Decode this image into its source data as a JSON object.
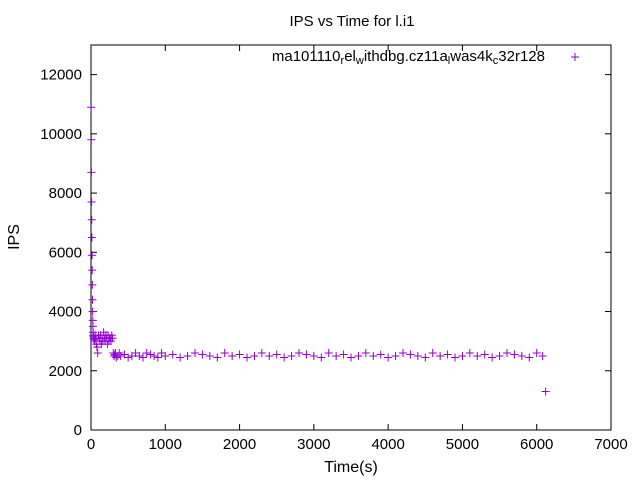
{
  "chart_data": {
    "type": "scatter",
    "title": "IPS vs Time for l.i1",
    "xlabel": "Time(s)",
    "ylabel": "IPS",
    "xlim": [
      0,
      7000
    ],
    "ylim": [
      0,
      13000
    ],
    "xticks": [
      0,
      1000,
      2000,
      3000,
      4000,
      5000,
      6000,
      7000
    ],
    "yticks": [
      0,
      2000,
      4000,
      6000,
      8000,
      10000,
      12000
    ],
    "xtick_labels": [
      "0",
      "1000",
      "2000",
      "3000",
      "4000",
      "5000",
      "6000",
      "7000"
    ],
    "ytick_labels": [
      "0",
      "2000",
      "4000",
      "6000",
      "8000",
      "10000",
      "12000"
    ],
    "grid": false,
    "legend_position": "top-right",
    "marker": "plus",
    "color": "#9400d3",
    "series": [
      {
        "name": "ma101110_rel_withdbg.cz11a_lwas4k_c32r128",
        "x": [
          2,
          4,
          6,
          8,
          10,
          12,
          14,
          16,
          18,
          20,
          22,
          24,
          26,
          28,
          30,
          34,
          38,
          42,
          48,
          55,
          62,
          70,
          80,
          90,
          100,
          110,
          120,
          130,
          140,
          150,
          160,
          170,
          180,
          190,
          200,
          210,
          220,
          230,
          240,
          250,
          260,
          270,
          280,
          290,
          300,
          310,
          320,
          330,
          340,
          360,
          380,
          400,
          450,
          500,
          550,
          600,
          650,
          700,
          750,
          800,
          850,
          900,
          950,
          1000,
          1100,
          1200,
          1300,
          1400,
          1500,
          1600,
          1700,
          1800,
          1900,
          2000,
          2100,
          2200,
          2300,
          2400,
          2500,
          2600,
          2700,
          2800,
          2900,
          3000,
          3100,
          3200,
          3300,
          3400,
          3500,
          3600,
          3700,
          3800,
          3900,
          4000,
          4100,
          4200,
          4300,
          4400,
          4500,
          4600,
          4700,
          4800,
          4900,
          5000,
          5100,
          5200,
          5300,
          5400,
          5500,
          5600,
          5700,
          5800,
          5900,
          6000,
          6080,
          6120
        ],
        "y": [
          10900,
          9800,
          8700,
          7700,
          7100,
          6500,
          5900,
          5400,
          4900,
          4400,
          4000,
          3700,
          3500,
          3300,
          3200,
          3150,
          3100,
          3050,
          3000,
          3200,
          3100,
          2900,
          2800,
          2600,
          3200,
          3100,
          3000,
          3200,
          2900,
          3100,
          3000,
          3300,
          3100,
          3000,
          3200,
          3100,
          2900,
          3200,
          3000,
          3100,
          3100,
          3000,
          3200,
          3100,
          2600,
          2500,
          2550,
          2600,
          2450,
          2500,
          2600,
          2500,
          2550,
          2450,
          2500,
          2600,
          2500,
          2450,
          2600,
          2550,
          2500,
          2450,
          2600,
          2500,
          2550,
          2450,
          2500,
          2600,
          2550,
          2500,
          2450,
          2600,
          2500,
          2550,
          2450,
          2500,
          2600,
          2500,
          2550,
          2450,
          2500,
          2600,
          2550,
          2500,
          2450,
          2600,
          2500,
          2550,
          2450,
          2500,
          2600,
          2500,
          2550,
          2450,
          2500,
          2600,
          2550,
          2500,
          2450,
          2600,
          2500,
          2550,
          2450,
          2500,
          2600,
          2500,
          2550,
          2450,
          2500,
          2600,
          2550,
          2500,
          2450,
          2600,
          2500,
          1300
        ]
      }
    ],
    "legend": {
      "parts": [
        {
          "text": "ma101110",
          "sub": false
        },
        {
          "text": "r",
          "sub": true
        },
        {
          "text": "el",
          "sub": false
        },
        {
          "text": "w",
          "sub": true
        },
        {
          "text": "ithdbg.cz11a",
          "sub": false
        },
        {
          "text": "l",
          "sub": true
        },
        {
          "text": "was4k",
          "sub": false
        },
        {
          "text": "c",
          "sub": true
        },
        {
          "text": "32r128",
          "sub": false
        }
      ]
    }
  }
}
